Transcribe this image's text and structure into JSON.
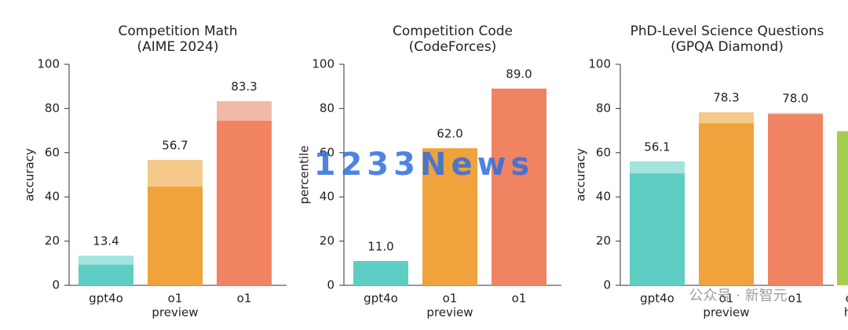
{
  "chart_data": [
    {
      "type": "bar",
      "title": [
        "Competition Math",
        "(AIME 2024)"
      ],
      "ylabel": "accuracy",
      "categories": [
        [
          "gpt4o"
        ],
        [
          "o1",
          "preview"
        ],
        [
          "o1"
        ]
      ],
      "values": [
        13.4,
        56.7,
        83.3
      ],
      "colors": [
        "#a3e4de",
        "#f4c98a",
        "#f2b9a8"
      ],
      "inner_values": [
        9.3,
        44.6,
        74.4
      ],
      "inner_colors": [
        "#5ecdc3",
        "#f0a23c",
        "#f08362"
      ],
      "ylim": [
        0,
        100
      ],
      "yticks": [
        0,
        20,
        40,
        60,
        80,
        100
      ]
    },
    {
      "type": "bar",
      "title": [
        "Competition Code",
        "(CodeForces)"
      ],
      "ylabel": "percentile",
      "categories": [
        [
          "gpt4o"
        ],
        [
          "o1",
          "preview"
        ],
        [
          "o1"
        ]
      ],
      "values": [
        11.0,
        62.0,
        89.0
      ],
      "value_labels": [
        "11.0",
        "62.0",
        "89.0"
      ],
      "colors": [
        "#5ecdc3",
        "#f0a23c",
        "#f08362"
      ],
      "ylim": [
        0,
        100
      ],
      "yticks": [
        0,
        20,
        40,
        60,
        80,
        100
      ]
    },
    {
      "type": "bar",
      "title": [
        "PhD-Level Science Questions",
        "(GPQA Diamond)"
      ],
      "ylabel": "accuracy",
      "categories": [
        [
          "gpt4o"
        ],
        [
          "o1",
          "preview"
        ],
        [
          "o1"
        ],
        [
          "expert",
          "human"
        ]
      ],
      "values": [
        56.1,
        78.3,
        78.0,
        69.7
      ],
      "value_labels": [
        "56.1",
        "78.3",
        "78.0",
        "69.7"
      ],
      "colors": [
        "#a3e4de",
        "#f4c98a",
        "#f2b9a8",
        "#a4cf4c"
      ],
      "inner_values": [
        50.6,
        73.3,
        77.3,
        69.7
      ],
      "inner_colors": [
        "#5ecdc3",
        "#f0a23c",
        "#f08362",
        "#a4cf4c"
      ],
      "ylim": [
        0,
        100
      ],
      "yticks": [
        0,
        20,
        40,
        60,
        80,
        100
      ]
    }
  ],
  "watermarks": [
    "1233News",
    "公众号 · 新智元"
  ]
}
